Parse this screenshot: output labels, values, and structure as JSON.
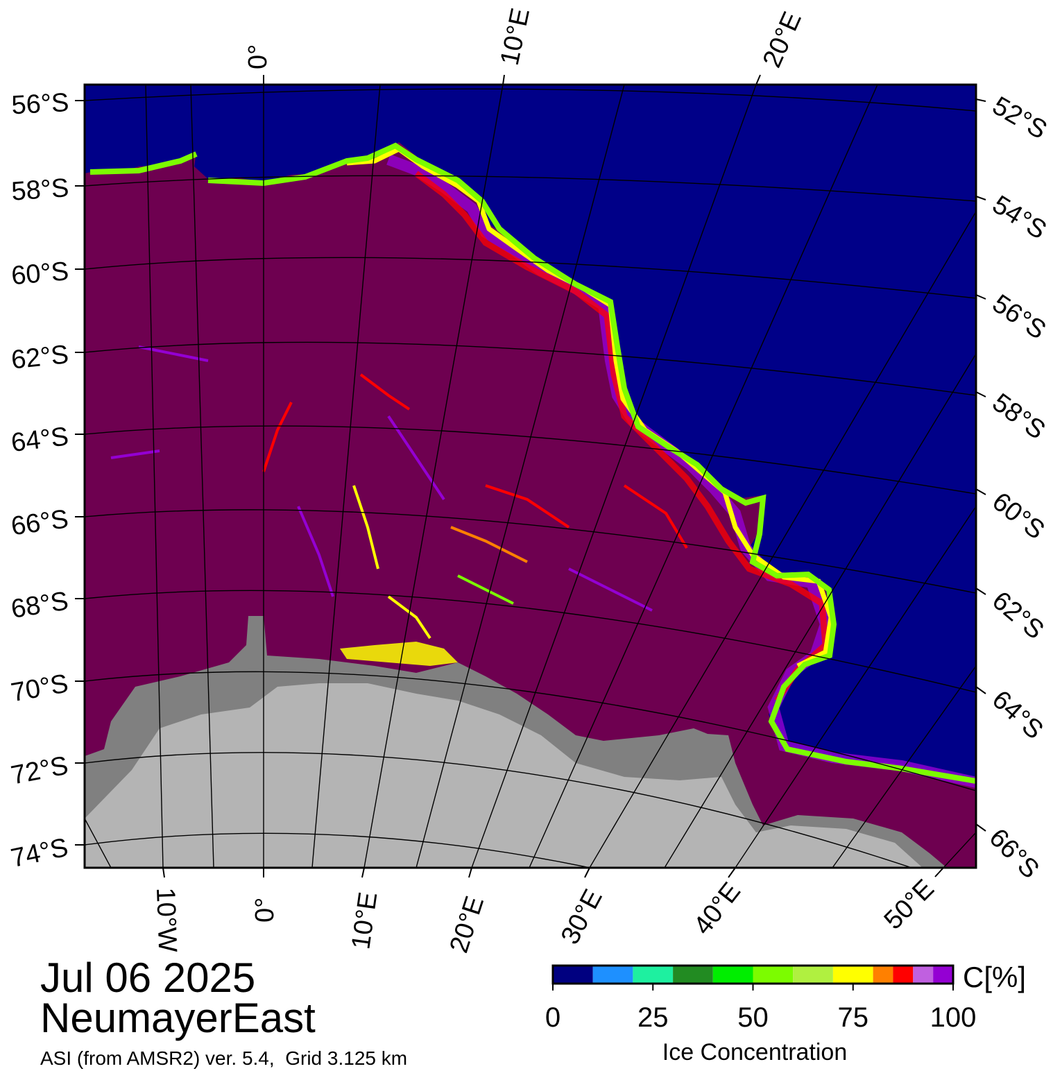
{
  "map": {
    "date": "Jul 06 2025",
    "region": "NeumayerEast",
    "source": "ASI (from AMSR2) ver. 5.4,  Grid 3.125 km",
    "colors": {
      "open_water": "#000088",
      "sea_ice_full": "#6e0050",
      "land": "#b4b4b4",
      "ice_shelf": "#808080",
      "graticule": "#000000",
      "frame": "#000000"
    },
    "top_lon_labels": [
      "0°",
      "10°E",
      "20°E"
    ],
    "bottom_lon_labels": [
      "10°W",
      "0°",
      "10°E",
      "20°E",
      "30°E",
      "40°E",
      "50°E"
    ],
    "left_lat_labels": [
      "56°S",
      "58°S",
      "60°S",
      "62°S",
      "64°S",
      "66°S",
      "68°S",
      "70°S",
      "72°S",
      "74°S"
    ],
    "right_lat_labels": [
      "52°S",
      "54°S",
      "56°S",
      "58°S",
      "60°S",
      "62°S",
      "64°S",
      "66°S"
    ]
  },
  "colorbar": {
    "label": "Ice Concentration",
    "unit": "C[%]",
    "ticks": [
      "0",
      "25",
      "50",
      "75",
      "100"
    ],
    "tick_values": [
      0,
      25,
      50,
      75,
      100
    ],
    "bins": [
      {
        "from": 0,
        "to": 10,
        "color": "#000080"
      },
      {
        "from": 10,
        "to": 20,
        "color": "#1e90ff"
      },
      {
        "from": 20,
        "to": 30,
        "color": "#1ef0a0"
      },
      {
        "from": 30,
        "to": 40,
        "color": "#228b22"
      },
      {
        "from": 40,
        "to": 50,
        "color": "#00ee00"
      },
      {
        "from": 50,
        "to": 60,
        "color": "#7cfc00"
      },
      {
        "from": 60,
        "to": 70,
        "color": "#b0f040"
      },
      {
        "from": 70,
        "to": 80,
        "color": "#ffff00"
      },
      {
        "from": 80,
        "to": 85,
        "color": "#ff8000"
      },
      {
        "from": 85,
        "to": 90,
        "color": "#ff0000"
      },
      {
        "from": 90,
        "to": 95,
        "color": "#c060e0"
      },
      {
        "from": 95,
        "to": 100,
        "color": "#9400d3"
      }
    ]
  }
}
